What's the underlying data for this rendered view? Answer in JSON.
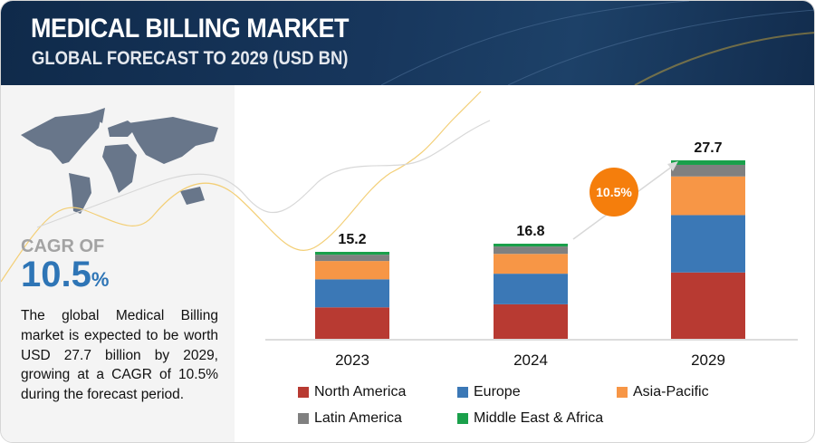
{
  "header": {
    "title": "MEDICAL BILLING MARKET",
    "subtitle": "GLOBAL FORECAST TO 2029 (USD BN)"
  },
  "sidebar": {
    "cagr_label": "CAGR OF",
    "cagr_value": "10.5",
    "cagr_unit": "%",
    "description": "The global Medical Billing market is expected to be worth USD 27.7 billion by 2029, growing at a CAGR of 10.5% during the forecast period."
  },
  "chart_data": {
    "type": "bar",
    "stacked": true,
    "title": "Medical Billing Market, Global Forecast to 2029 (USD BN)",
    "categories": [
      "2023",
      "2024",
      "2029"
    ],
    "totals": [
      "15.2",
      "16.8",
      "27.7"
    ],
    "series": [
      {
        "name": "North America",
        "color": "#b83a32",
        "values": [
          5.5,
          6.1,
          10.3
        ]
      },
      {
        "name": "Europe",
        "color": "#3b78b6",
        "values": [
          4.9,
          5.4,
          8.9
        ]
      },
      {
        "name": "Asia-Pacific",
        "color": "#f79646",
        "values": [
          3.2,
          3.5,
          6.0
        ]
      },
      {
        "name": "Latin America",
        "color": "#808080",
        "values": [
          1.1,
          1.3,
          1.8
        ]
      },
      {
        "name": "Middle East & Africa",
        "color": "#1aa04b",
        "values": [
          0.5,
          0.5,
          0.7
        ]
      }
    ],
    "cagr_badge": "10.5%",
    "ylim": [
      0,
      28
    ]
  }
}
